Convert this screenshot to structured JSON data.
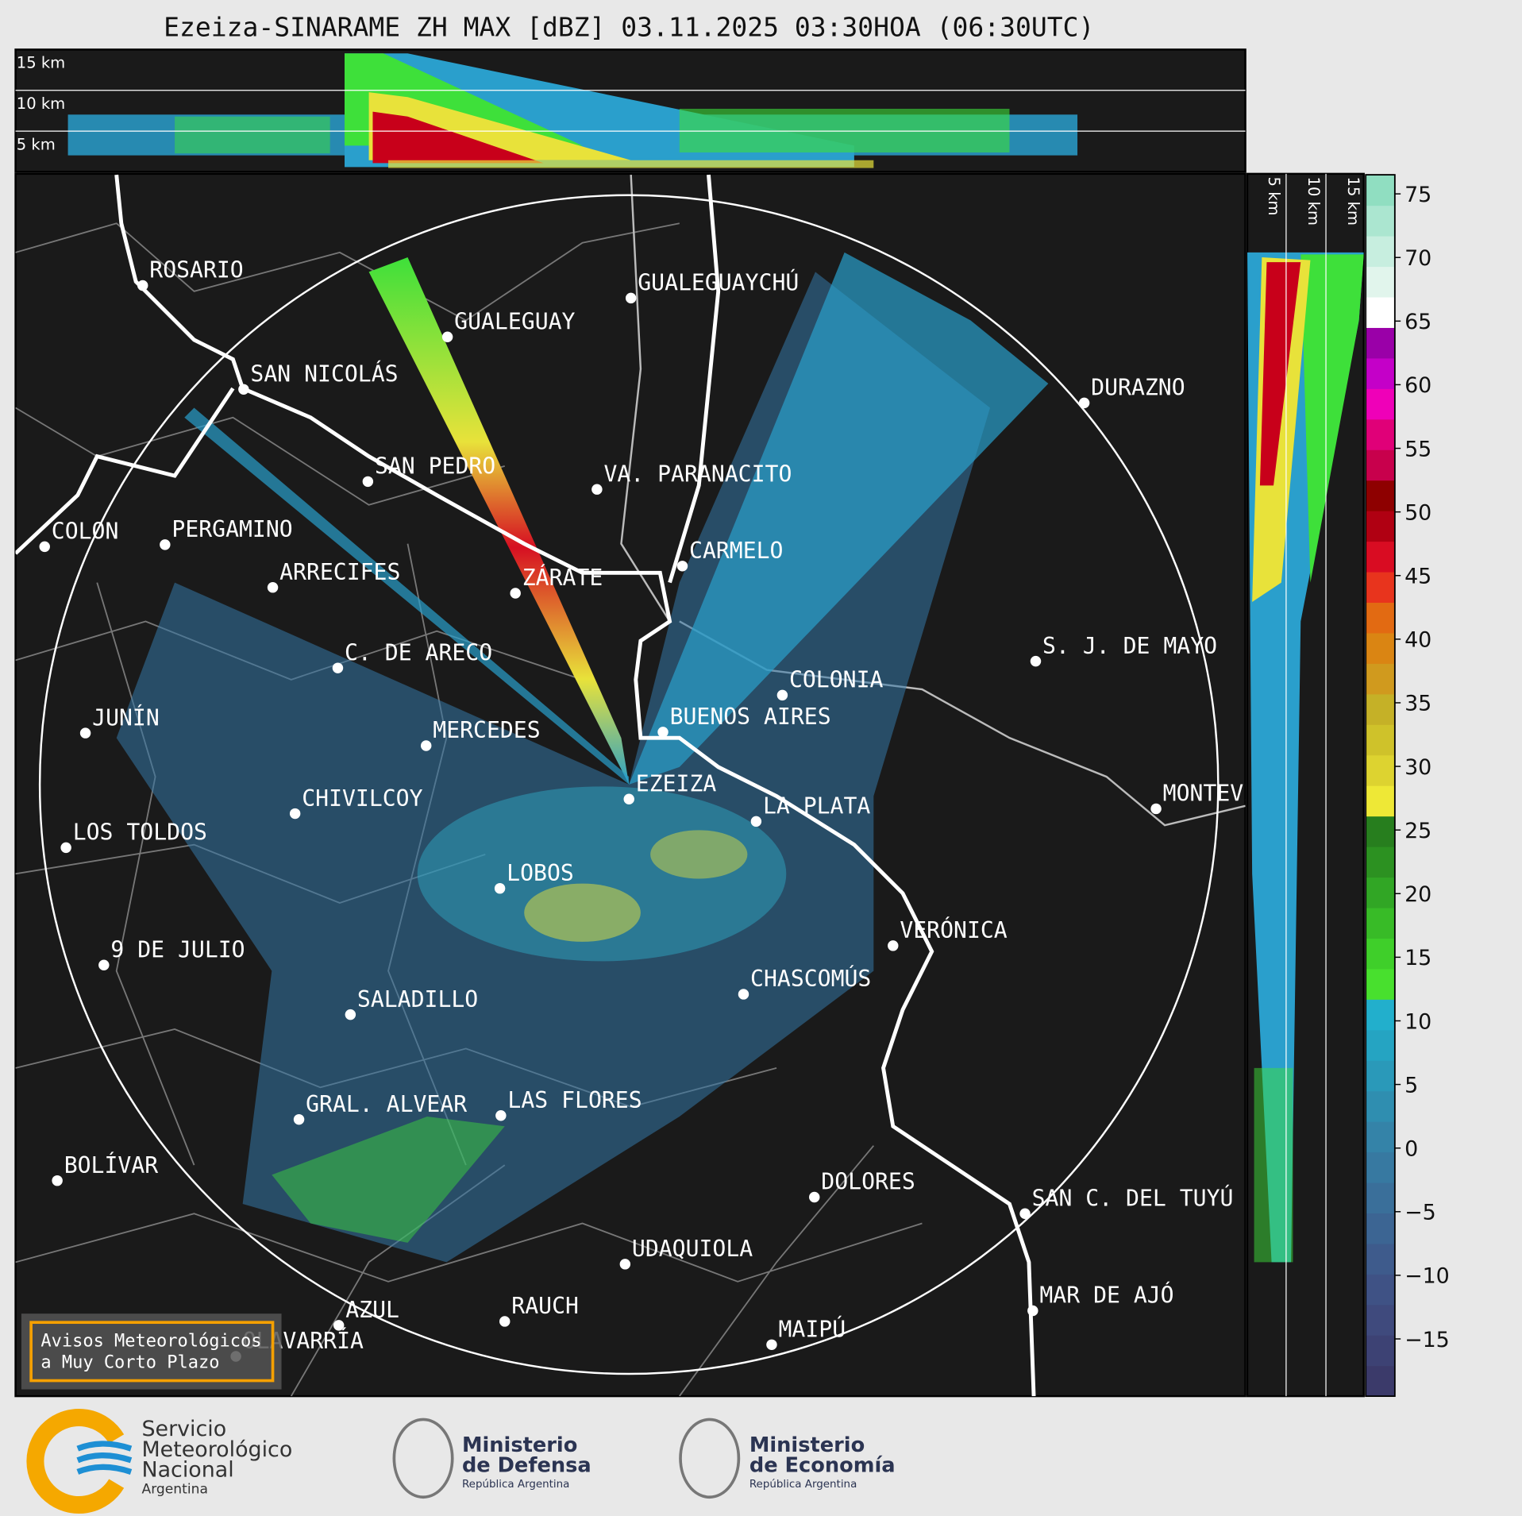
{
  "title": "Ezeiza-SINARAME ZH MAX [dBZ] 03.11.2025 03:30HOA (06:30UTC)",
  "top_panel_labels": [
    "15 km",
    "10 km",
    "5 km"
  ],
  "side_panel_labels": [
    "5 km",
    "10 km",
    "15 km"
  ],
  "cities": [
    {
      "name": "ROSARIO"
    },
    {
      "name": "GUALEGUAYCHÚ"
    },
    {
      "name": "GUALEGUAY"
    },
    {
      "name": "SAN NICOLÁS"
    },
    {
      "name": "DURAZNO"
    },
    {
      "name": "SAN PEDRO"
    },
    {
      "name": "VA. PARANACITO"
    },
    {
      "name": "COLON"
    },
    {
      "name": "PERGAMINO"
    },
    {
      "name": "CARMELO"
    },
    {
      "name": "ARRECIFES"
    },
    {
      "name": "ZÁRATE"
    },
    {
      "name": "C. DE ARECO"
    },
    {
      "name": "S. J. DE MAYO"
    },
    {
      "name": "COLONIA"
    },
    {
      "name": "BUENOS AIRES"
    },
    {
      "name": "JUNÍN"
    },
    {
      "name": "MERCEDES"
    },
    {
      "name": "EZEIZA"
    },
    {
      "name": "CHIVILCOY"
    },
    {
      "name": "MONTEVIDEO"
    },
    {
      "name": "LA PLATA"
    },
    {
      "name": "LOS TOLDOS"
    },
    {
      "name": "LOBOS"
    },
    {
      "name": "VERÓNICA"
    },
    {
      "name": "9 DE JULIO"
    },
    {
      "name": "CHASCOMÚS"
    },
    {
      "name": "SALADILLO"
    },
    {
      "name": "GRAL. ALVEAR"
    },
    {
      "name": "LAS FLORES"
    },
    {
      "name": "BOLÍVAR"
    },
    {
      "name": "DOLORES"
    },
    {
      "name": "SAN C. DEL TUYÚ"
    },
    {
      "name": "UDAQUIOLA"
    },
    {
      "name": "MAR DE AJÓ"
    },
    {
      "name": "AZUL"
    },
    {
      "name": "RAUCH"
    },
    {
      "name": "OLAVARRÍA"
    },
    {
      "name": "MAIPÚ"
    }
  ],
  "warning_box": [
    "Avisos Meteorológicos",
    "a Muy Corto Plazo"
  ],
  "colorbar": {
    "lim": [
      -19.5,
      76.5
    ],
    "ticks": [
      75,
      70,
      65,
      60,
      55,
      50,
      45,
      40,
      35,
      30,
      25,
      20,
      15,
      10,
      5,
      0,
      {
        "value": -5,
        "label": "−5"
      },
      {
        "value": -10,
        "label": "−10"
      },
      {
        "value": -15,
        "label": "−15"
      }
    ],
    "colors": [
      "#3b3a6a",
      "#3d4274",
      "#3f4a7d",
      "#3f5285",
      "#3e5b8c",
      "#3c6593",
      "#3a6f9a",
      "#3779a1",
      "#3483a8",
      "#2f8eb0",
      "#2a99b9",
      "#25a4c2",
      "#22afcc",
      "#48e02e",
      "#3fcf2a",
      "#38bb27",
      "#31a625",
      "#2c9121",
      "#277e1e",
      "#eee836",
      "#ddd330",
      "#cfc22a",
      "#c5b127",
      "#d09a1e",
      "#da8513",
      "#e26a12",
      "#e8341d",
      "#d90c22",
      "#b00012",
      "#8e0000",
      "#c8004c",
      "#e00078",
      "#ef00b8",
      "#c400c8",
      "#9a00a8",
      "#ffffff",
      "#e1f5ec",
      "#c7eedf",
      "#abe6d0",
      "#90dec1"
    ]
  },
  "footer": {
    "smn": [
      "Servicio",
      "Meteorológico",
      "Nacional",
      "Argentina"
    ],
    "defensa": [
      "Ministerio",
      "de Defensa",
      "República Argentina"
    ],
    "economia": [
      "Ministerio",
      "de Economía",
      "República Argentina"
    ]
  }
}
